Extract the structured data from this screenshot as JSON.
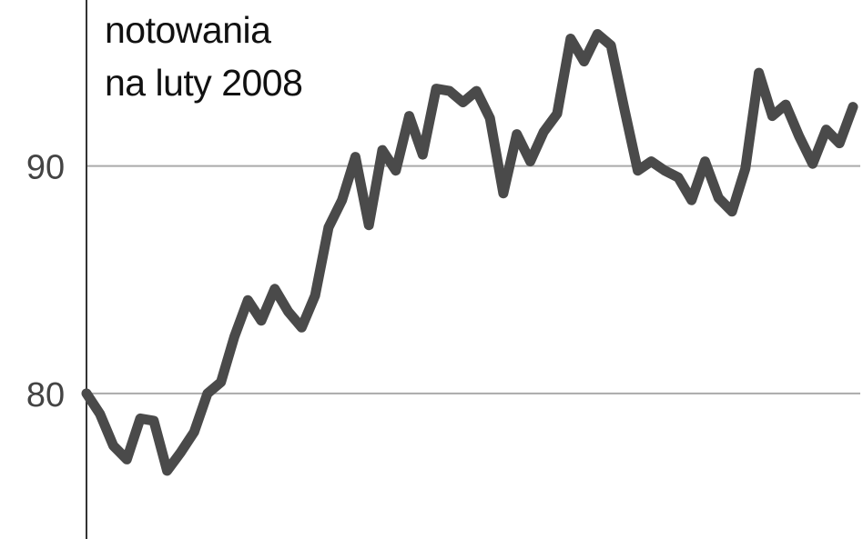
{
  "chart_data": {
    "type": "line",
    "title_lines": [
      "notowania",
      "na luty 2008"
    ],
    "xlabel": "",
    "ylabel": "",
    "ylim": [
      73.6,
      97.3
    ],
    "yticks": [
      80,
      90
    ],
    "ytick_labels": [
      "80",
      "90"
    ],
    "grid": "horizontal",
    "line_color": "#4a4a4a",
    "series": [
      {
        "values": [
          80.0,
          79.1,
          77.7,
          77.1,
          78.9,
          78.8,
          76.6,
          77.4,
          78.3,
          80.0,
          80.5,
          82.5,
          84.1,
          83.2,
          84.6,
          83.6,
          82.9,
          84.3,
          87.3,
          88.5,
          90.4,
          87.4,
          90.7,
          89.8,
          92.2,
          90.5,
          93.4,
          93.3,
          92.8,
          93.3,
          92.1,
          88.8,
          91.4,
          90.2,
          91.5,
          92.3,
          95.6,
          94.6,
          95.8,
          95.3,
          92.5,
          89.8,
          90.2,
          89.8,
          89.5,
          88.5,
          90.2,
          88.6,
          88.0,
          89.9,
          94.1,
          92.2,
          92.7,
          91.3,
          90.1,
          91.6,
          91.0,
          92.6
        ]
      }
    ]
  }
}
